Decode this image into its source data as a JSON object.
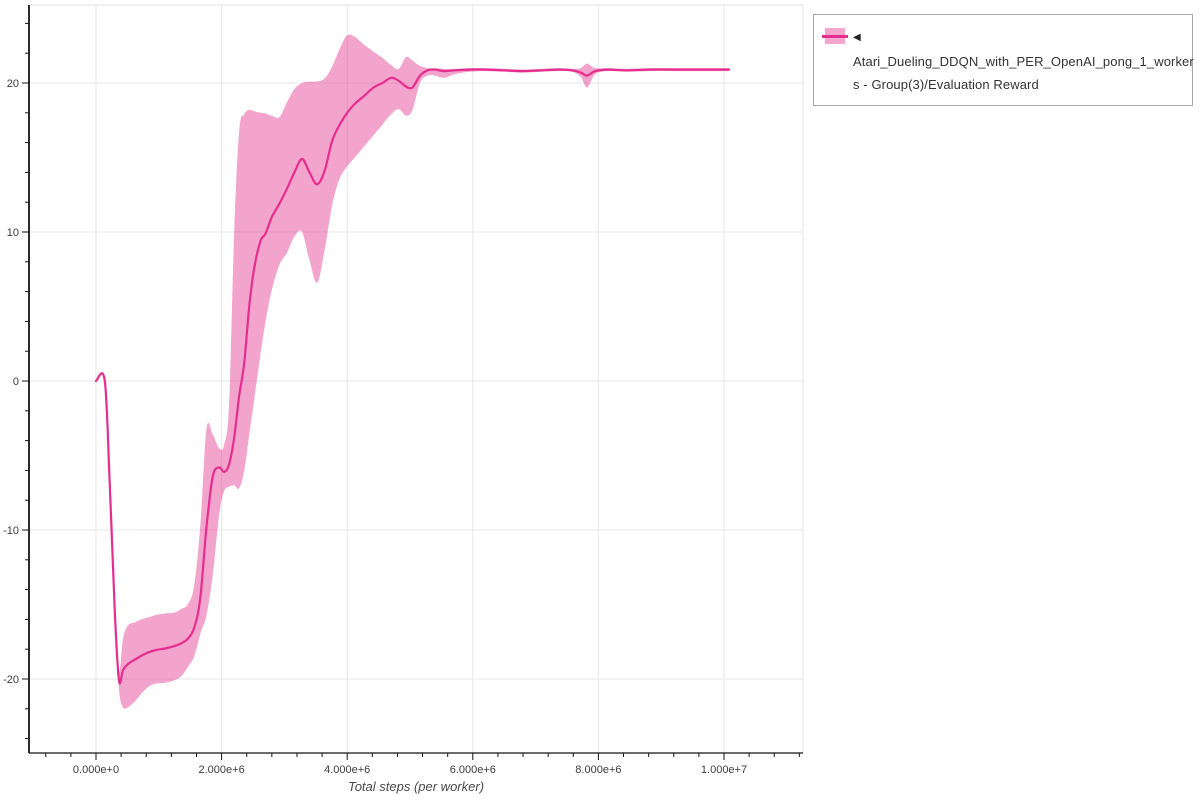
{
  "legend": {
    "cursor_icon": "◀",
    "label_line1": "Atari_Dueling_DDQN_with_PER_OpenAI_pong_1_worker",
    "label_line2": "s - Group(3)/Evaluation Reward",
    "series_full_name": "Atari_Dueling_DDQN_with_PER_OpenAI_pong_1_workers - Group(3)/Evaluation Reward"
  },
  "chart_data": {
    "type": "line",
    "title": "",
    "xlabel": "Total steps (per worker)",
    "ylabel": "",
    "grid": true,
    "legend_position": "top-right",
    "x_range_millions": [
      -1.07,
      11.26
    ],
    "y_range": [
      -25,
      25.2
    ],
    "x_tick_values_millions": [
      0,
      2,
      4,
      6,
      8,
      10
    ],
    "x_tick_labels": [
      "0.000e+0",
      "2.000e+6",
      "4.000e+6",
      "6.000e+6",
      "8.000e+6",
      "1.000e+7"
    ],
    "x_minor_step_millions": 0.4,
    "y_tick_values": [
      -20,
      -10,
      0,
      10,
      20
    ],
    "y_tick_labels": [
      "-20",
      "-10",
      "0",
      "10",
      "20"
    ],
    "y_minor_step": 2,
    "colors": {
      "line": "#e52d90",
      "band": "rgba(229,53,141,0.45)",
      "grid": "#e7e7e7",
      "axis": "#151515",
      "tick_text": "#3d3d3d"
    },
    "series": [
      {
        "name": "Atari_Dueling_DDQN_with_PER_OpenAI_pong_1_workers - Group(3)/Evaluation Reward",
        "x_millions": [
          0.0,
          0.14,
          0.22,
          0.3,
          0.366,
          0.43,
          0.51,
          0.62,
          0.72,
          0.84,
          0.96,
          1.1,
          1.24,
          1.36,
          1.46,
          1.56,
          1.66,
          1.76,
          1.86,
          1.96,
          2.04,
          2.12,
          2.2,
          2.28,
          2.36,
          2.44,
          2.52,
          2.62,
          2.7,
          2.8,
          2.92,
          3.04,
          3.16,
          3.28,
          3.4,
          3.52,
          3.64,
          3.76,
          3.88,
          4.0,
          4.12,
          4.26,
          4.42,
          4.56,
          4.7,
          4.82,
          4.94,
          5.04,
          5.16,
          5.28,
          5.4,
          5.54,
          5.72,
          5.95,
          6.2,
          6.5,
          6.8,
          7.1,
          7.35,
          7.58,
          7.72,
          7.82,
          7.95,
          8.15,
          8.45,
          8.8,
          9.2,
          9.6,
          10.08
        ],
        "mean": [
          0,
          0,
          -7,
          -15.5,
          -20.1,
          -19.4,
          -19.0,
          -18.7,
          -18.45,
          -18.2,
          -18.05,
          -17.95,
          -17.8,
          -17.6,
          -17.3,
          -16.6,
          -14.6,
          -9.8,
          -6.4,
          -5.8,
          -6.1,
          -5.6,
          -3.8,
          -1.0,
          1.2,
          5.0,
          7.6,
          9.4,
          9.9,
          11.0,
          11.9,
          12.9,
          14.0,
          14.9,
          14.0,
          13.2,
          14.1,
          16.1,
          17.2,
          18.0,
          18.6,
          19.1,
          19.7,
          20.0,
          20.35,
          20.15,
          19.75,
          19.7,
          20.5,
          20.85,
          20.9,
          20.8,
          20.85,
          20.9,
          20.9,
          20.85,
          20.8,
          20.85,
          20.9,
          20.85,
          20.7,
          20.5,
          20.8,
          20.9,
          20.85,
          20.9,
          20.9,
          20.9,
          20.9
        ],
        "lower": [
          0,
          0,
          -7.2,
          -16.0,
          -20.7,
          -21.9,
          -21.9,
          -21.5,
          -21.0,
          -20.5,
          -20.3,
          -20.25,
          -20.1,
          -19.8,
          -19.2,
          -18.5,
          -17.0,
          -15.7,
          -13.0,
          -9.0,
          -7.4,
          -7.1,
          -7.0,
          -7.2,
          -6.0,
          -3.6,
          -1.2,
          1.8,
          4.0,
          6.1,
          7.8,
          8.6,
          9.7,
          10.0,
          8.1,
          6.6,
          8.8,
          11.8,
          13.6,
          14.4,
          15.0,
          15.7,
          16.5,
          17.2,
          17.9,
          18.25,
          17.8,
          18.2,
          20.0,
          20.5,
          20.5,
          20.35,
          20.6,
          20.75,
          20.8,
          20.75,
          20.7,
          20.75,
          20.8,
          20.75,
          20.4,
          19.7,
          20.6,
          20.8,
          20.75,
          20.8,
          20.8,
          20.8,
          20.8
        ],
        "upper": [
          0,
          0,
          -6.8,
          -15.0,
          -19.5,
          -17.3,
          -16.4,
          -16.2,
          -16.0,
          -15.85,
          -15.7,
          -15.6,
          -15.55,
          -15.3,
          -15.0,
          -13.8,
          -9.8,
          -3.2,
          -3.6,
          -4.5,
          -4.3,
          -1.5,
          10.0,
          16.8,
          17.9,
          18.2,
          18.1,
          18.0,
          17.95,
          17.8,
          17.7,
          18.7,
          19.6,
          20.0,
          20.1,
          20.1,
          20.3,
          21.1,
          22.3,
          23.2,
          23.1,
          22.6,
          22.1,
          21.7,
          21.2,
          20.95,
          21.75,
          21.5,
          21.15,
          21.0,
          21.0,
          20.95,
          20.95,
          21.0,
          21.0,
          20.95,
          20.9,
          20.95,
          21.0,
          20.95,
          21.0,
          21.3,
          21.0,
          21.0,
          20.95,
          21.0,
          21.0,
          21.0,
          21.0
        ]
      }
    ]
  }
}
